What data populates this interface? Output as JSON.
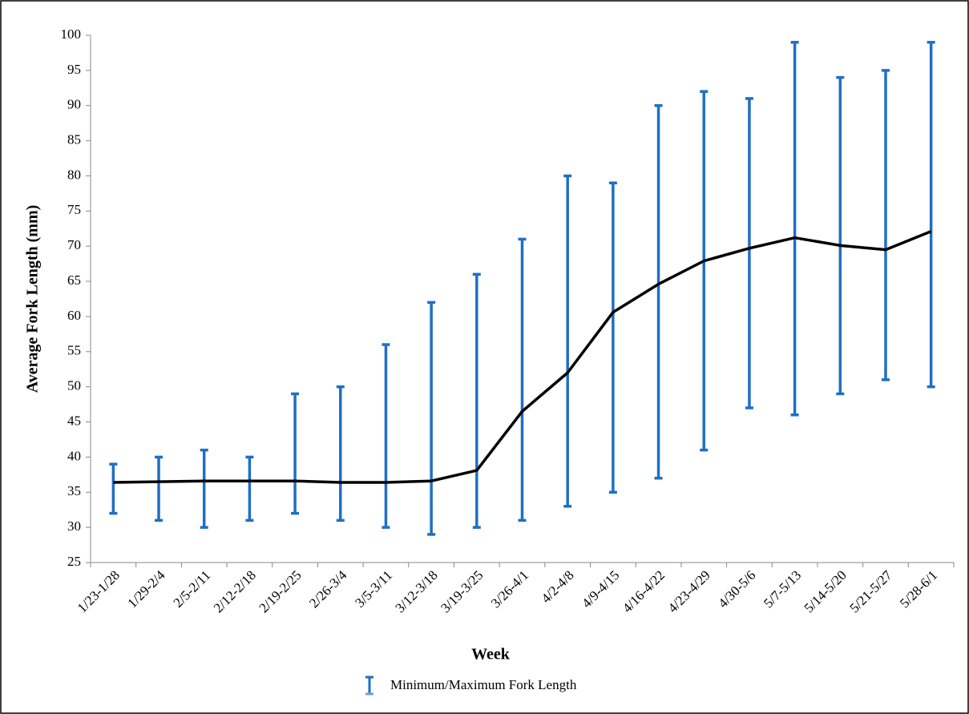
{
  "chart_data": {
    "type": "line",
    "x_label": "Week",
    "y_label": "Average Fork Length (mm)",
    "categories": [
      "1/23-1/28",
      "1/29-2/4",
      "2/5-2/11",
      "2/12-2/18",
      "2/19-2/25",
      "2/26-3/4",
      "3/5-3/11",
      "3/12-3/18",
      "3/19-3/25",
      "3/26-4/1",
      "4/2-4/8",
      "4/9-4/15",
      "4/16-4/22",
      "4/23-4/29",
      "4/30-5/6",
      "5/7-5/13",
      "5/14-5/20",
      "5/21-5/27",
      "5/28-6/1"
    ],
    "values": [
      36.4,
      36.5,
      36.6,
      36.6,
      36.6,
      36.4,
      36.4,
      36.6,
      38.1,
      46.5,
      52,
      60.6,
      64.6,
      67.9,
      69.7,
      71.2,
      70.1,
      69.5,
      72.1
    ],
    "color": "#000000",
    "error_bars": {
      "name": "Minimum/Maximum Fork Length",
      "color": "#1f6fc5",
      "low": [
        32,
        31,
        30,
        31,
        32,
        31,
        30,
        29,
        30,
        31,
        33,
        35,
        37,
        41,
        47,
        46,
        49,
        51,
        50
      ],
      "high": [
        39,
        40,
        41,
        40,
        49,
        50,
        56,
        62,
        66,
        71,
        80,
        79,
        90,
        92,
        91,
        99,
        94,
        95,
        99
      ]
    },
    "ylim": [
      25,
      100
    ],
    "yticks": [
      25,
      30,
      35,
      40,
      45,
      50,
      55,
      60,
      65,
      70,
      75,
      80,
      85,
      90,
      95,
      100
    ]
  }
}
